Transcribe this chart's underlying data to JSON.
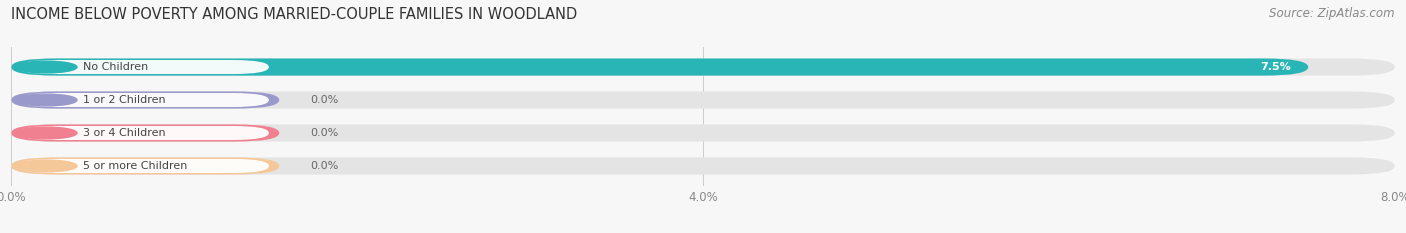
{
  "title": "INCOME BELOW POVERTY AMONG MARRIED-COUPLE FAMILIES IN WOODLAND",
  "source": "Source: ZipAtlas.com",
  "categories": [
    "No Children",
    "1 or 2 Children",
    "3 or 4 Children",
    "5 or more Children"
  ],
  "values": [
    7.5,
    0.0,
    0.0,
    0.0
  ],
  "bar_colors": [
    "#29b5b5",
    "#9999cc",
    "#f08090",
    "#f5c89a"
  ],
  "xlim": [
    0,
    8.0
  ],
  "xticks": [
    0.0,
    4.0,
    8.0
  ],
  "xtick_labels": [
    "0.0%",
    "4.0%",
    "8.0%"
  ],
  "title_fontsize": 10.5,
  "source_fontsize": 8.5,
  "bar_height": 0.52,
  "background_color": "#f7f7f7",
  "bar_bg_color": "#e4e4e4",
  "label_bg": "#ffffff",
  "label_text_color": "#444444",
  "value_label_inside_color": "#ffffff",
  "value_label_outside_color": "#666666",
  "zero_bar_width": 1.55
}
